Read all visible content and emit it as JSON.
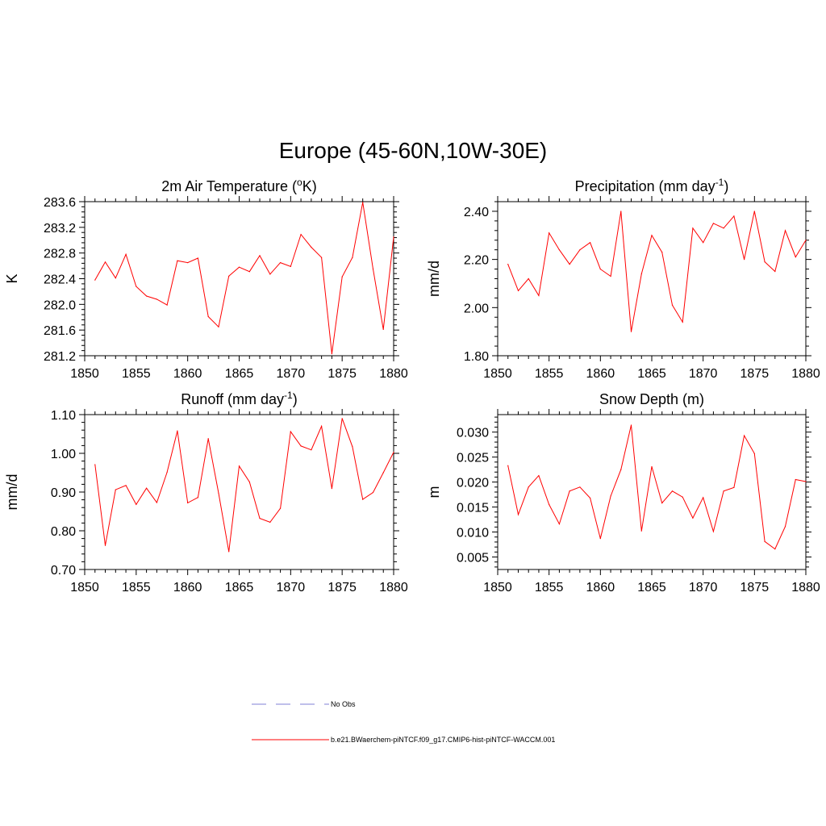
{
  "figure": {
    "title": "Europe (45-60N,10W-30E)"
  },
  "legend": {
    "placement": "bottom-center",
    "entries": [
      {
        "label": "No Obs",
        "color": "#9999dd",
        "style": "dashed"
      },
      {
        "label": "b.e21.BWaerchem-piNTCF.f09_g17.CMIP6-hist-piNTCF-WACCM.001",
        "color": "#ff0000",
        "style": "solid"
      }
    ]
  },
  "chart_data": [
    {
      "type": "line",
      "title": "2m Air Temperature (",
      "title_super": "o",
      "title_after": "K)",
      "xlabel": "",
      "ylabel": "K",
      "xlim": [
        1850,
        1880
      ],
      "ylim": [
        281.2,
        283.6
      ],
      "xticks": [
        1850,
        1855,
        1860,
        1865,
        1870,
        1875,
        1880
      ],
      "yticks": [
        "281.2",
        "281.6",
        "282.0",
        "282.4",
        "282.8",
        "283.2",
        "283.6"
      ],
      "grid": false,
      "series": [
        {
          "color": "#ff0000",
          "x": [
            1851,
            1852,
            1853,
            1854,
            1855,
            1856,
            1857,
            1858,
            1859,
            1860,
            1861,
            1862,
            1863,
            1864,
            1865,
            1866,
            1867,
            1868,
            1869,
            1870,
            1871,
            1872,
            1873,
            1874,
            1875,
            1876,
            1877,
            1878,
            1879,
            1880
          ],
          "y": [
            282.38,
            282.66,
            282.41,
            282.78,
            282.28,
            282.13,
            282.08,
            281.99,
            282.68,
            282.65,
            282.72,
            281.81,
            281.65,
            282.44,
            282.58,
            282.51,
            282.76,
            282.47,
            282.65,
            282.59,
            283.09,
            282.89,
            282.73,
            281.23,
            282.43,
            282.73,
            283.59,
            282.55,
            281.61,
            283.05
          ]
        }
      ]
    },
    {
      "type": "line",
      "title": "Precipitation (mm day",
      "title_super": "-1",
      "title_after": ")",
      "xlabel": "",
      "ylabel": "mm/d",
      "xlim": [
        1850,
        1880
      ],
      "ylim": [
        1.8,
        2.44
      ],
      "xticks": [
        1850,
        1855,
        1860,
        1865,
        1870,
        1875,
        1880
      ],
      "yticks": [
        "1.80",
        "2.00",
        "2.20",
        "2.40"
      ],
      "grid": false,
      "series": [
        {
          "color": "#ff0000",
          "x": [
            1851,
            1852,
            1853,
            1854,
            1855,
            1856,
            1857,
            1858,
            1859,
            1860,
            1861,
            1862,
            1863,
            1864,
            1865,
            1866,
            1867,
            1868,
            1869,
            1870,
            1871,
            1872,
            1873,
            1874,
            1875,
            1876,
            1877,
            1878,
            1879,
            1880
          ],
          "y": [
            2.18,
            2.07,
            2.12,
            2.05,
            2.31,
            2.24,
            2.18,
            2.24,
            2.27,
            2.16,
            2.13,
            2.4,
            1.9,
            2.14,
            2.3,
            2.23,
            2.01,
            1.94,
            2.33,
            2.27,
            2.35,
            2.33,
            2.38,
            2.2,
            2.4,
            2.19,
            2.15,
            2.32,
            2.21,
            2.28
          ]
        }
      ]
    },
    {
      "type": "line",
      "title": "Runoff (mm day",
      "title_super": "-1",
      "title_after": ")",
      "xlabel": "",
      "ylabel": "mm/d",
      "xlim": [
        1850,
        1880
      ],
      "ylim": [
        0.7,
        1.1
      ],
      "xticks": [
        1850,
        1855,
        1860,
        1865,
        1870,
        1875,
        1880
      ],
      "yticks": [
        "0.70",
        "0.80",
        "0.90",
        "1.00",
        "1.10"
      ],
      "grid": false,
      "series": [
        {
          "color": "#ff0000",
          "x": [
            1851,
            1852,
            1853,
            1854,
            1855,
            1856,
            1857,
            1858,
            1859,
            1860,
            1861,
            1862,
            1863,
            1864,
            1865,
            1866,
            1867,
            1868,
            1869,
            1870,
            1871,
            1872,
            1873,
            1874,
            1875,
            1876,
            1877,
            1878,
            1879,
            1880
          ],
          "y": [
            0.971,
            0.762,
            0.906,
            0.917,
            0.868,
            0.91,
            0.873,
            0.951,
            1.058,
            0.872,
            0.886,
            1.038,
            0.897,
            0.746,
            0.967,
            0.926,
            0.832,
            0.822,
            0.858,
            1.056,
            1.019,
            1.009,
            1.07,
            0.909,
            1.09,
            1.017,
            0.881,
            0.899,
            0.95,
            1.003
          ]
        }
      ]
    },
    {
      "type": "line",
      "title": "Snow Depth (m)",
      "title_super": "",
      "title_after": "",
      "xlabel": "",
      "ylabel": "m",
      "xlim": [
        1850,
        1880
      ],
      "ylim": [
        0.0025,
        0.0335
      ],
      "xticks": [
        1850,
        1855,
        1860,
        1865,
        1870,
        1875,
        1880
      ],
      "yticks": [
        "0.005",
        "0.010",
        "0.015",
        "0.020",
        "0.025",
        "0.030"
      ],
      "grid": false,
      "series": [
        {
          "color": "#ff0000",
          "x": [
            1851,
            1852,
            1853,
            1854,
            1855,
            1856,
            1857,
            1858,
            1859,
            1860,
            1861,
            1862,
            1863,
            1864,
            1865,
            1866,
            1867,
            1868,
            1869,
            1870,
            1871,
            1872,
            1873,
            1874,
            1875,
            1876,
            1877,
            1878,
            1879,
            1880
          ],
          "y": [
            0.0233,
            0.0135,
            0.019,
            0.0213,
            0.0155,
            0.0116,
            0.0182,
            0.019,
            0.0168,
            0.0087,
            0.0172,
            0.0225,
            0.0314,
            0.0102,
            0.0231,
            0.0158,
            0.0182,
            0.017,
            0.0128,
            0.0169,
            0.0101,
            0.0182,
            0.0189,
            0.0293,
            0.0257,
            0.0081,
            0.0066,
            0.0111,
            0.0205,
            0.0201
          ]
        }
      ]
    }
  ]
}
